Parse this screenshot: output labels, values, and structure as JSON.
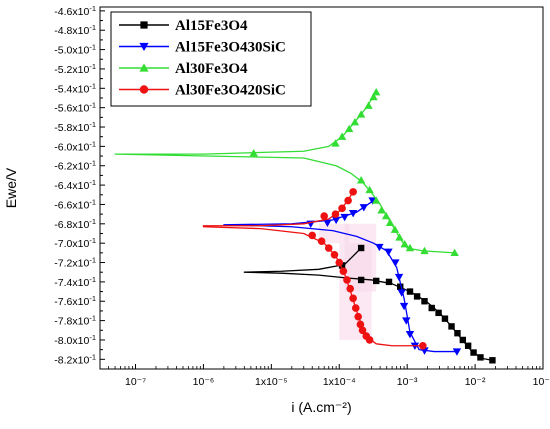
{
  "chart_data": {
    "type": "line",
    "xlabel": "i (A.cm⁻²)",
    "ylabel": "Ewe/V",
    "x_scale": "log",
    "xlim": [
      3e-08,
      0.1
    ],
    "ylim": [
      -0.83,
      -0.456
    ],
    "x_ticks": [
      {
        "value": 1e-07,
        "label": "10⁻⁷"
      },
      {
        "value": 1e-06,
        "label": "10⁻⁶"
      },
      {
        "value": 1e-05,
        "label": "1x10⁻⁵"
      },
      {
        "value": 0.0001,
        "label": "1x10⁻⁴"
      },
      {
        "value": 0.001,
        "label": "10⁻³"
      },
      {
        "value": 0.01,
        "label": "10⁻²"
      },
      {
        "value": 0.1,
        "label": "10⁻¹"
      }
    ],
    "y_ticks": [
      {
        "value": -0.46,
        "mant": "-4.6x10",
        "exp": "-1"
      },
      {
        "value": -0.48,
        "mant": "-4.8x10",
        "exp": "-1"
      },
      {
        "value": -0.5,
        "mant": "-5.0x10",
        "exp": "-1"
      },
      {
        "value": -0.52,
        "mant": "-5.2x10",
        "exp": "-1"
      },
      {
        "value": -0.54,
        "mant": "-5.4x10",
        "exp": "-1"
      },
      {
        "value": -0.56,
        "mant": "-5.6x10",
        "exp": "-1"
      },
      {
        "value": -0.58,
        "mant": "-5.8x10",
        "exp": "-1"
      },
      {
        "value": -0.6,
        "mant": "-6.0x10",
        "exp": "-1"
      },
      {
        "value": -0.62,
        "mant": "-6.2x10",
        "exp": "-1"
      },
      {
        "value": -0.64,
        "mant": "-6.4x10",
        "exp": "-1"
      },
      {
        "value": -0.66,
        "mant": "-6.6x10",
        "exp": "-1"
      },
      {
        "value": -0.68,
        "mant": "-6.8x10",
        "exp": "-1"
      },
      {
        "value": -0.7,
        "mant": "-7.0x10",
        "exp": "-1"
      },
      {
        "value": -0.72,
        "mant": "-7.2x10",
        "exp": "-1"
      },
      {
        "value": -0.74,
        "mant": "-7.4x10",
        "exp": "-1"
      },
      {
        "value": -0.76,
        "mant": "-7.6x10",
        "exp": "-1"
      },
      {
        "value": -0.78,
        "mant": "-7.8x10",
        "exp": "-1"
      },
      {
        "value": -0.8,
        "mant": "-8.0x10",
        "exp": "-1"
      },
      {
        "value": -0.82,
        "mant": "-8.2x10",
        "exp": "-1"
      }
    ],
    "legend": {
      "placement": "top-left"
    },
    "series": [
      {
        "name": "Al15Fe3O4",
        "color": "#000000",
        "marker": "square",
        "points": [
          [
            0.00021,
            -0.705
          ],
          [
            0.00012,
            -0.722
          ],
          [
            5e-05,
            -0.727
          ],
          [
            1.4e-05,
            -0.729
          ],
          [
            4e-06,
            -0.73
          ],
          [
            1.4e-05,
            -0.731
          ],
          [
            5e-05,
            -0.733
          ],
          [
            0.00013,
            -0.736
          ],
          [
            0.0003,
            -0.738
          ],
          [
            0.0006,
            -0.742
          ],
          [
            0.0011,
            -0.75
          ],
          [
            0.0019,
            -0.76
          ],
          [
            0.003,
            -0.772
          ],
          [
            0.0045,
            -0.786
          ],
          [
            0.0065,
            -0.8
          ],
          [
            0.009,
            -0.812
          ],
          [
            0.0125,
            -0.819
          ],
          [
            0.018,
            -0.821
          ]
        ],
        "markers": [
          [
            0.00021,
            -0.705
          ],
          [
            0.00011,
            -0.723
          ],
          [
            0.00021,
            -0.738
          ],
          [
            0.00035,
            -0.739
          ],
          [
            0.00054,
            -0.74
          ],
          [
            0.00079,
            -0.745
          ],
          [
            0.0011,
            -0.75
          ],
          [
            0.0014,
            -0.755
          ],
          [
            0.0018,
            -0.76
          ],
          [
            0.0023,
            -0.767
          ],
          [
            0.0029,
            -0.772
          ],
          [
            0.0036,
            -0.778
          ],
          [
            0.0045,
            -0.786
          ],
          [
            0.0055,
            -0.793
          ],
          [
            0.0066,
            -0.8
          ],
          [
            0.0079,
            -0.806
          ],
          [
            0.0095,
            -0.813
          ],
          [
            0.012,
            -0.818
          ],
          [
            0.018,
            -0.821
          ]
        ]
      },
      {
        "name": "Al15Fe3O430SiC",
        "color": "#0000ff",
        "marker": "triangle-down",
        "points": [
          [
            0.00032,
            -0.656
          ],
          [
            0.00018,
            -0.668
          ],
          [
            8e-05,
            -0.676
          ],
          [
            2e-05,
            -0.68
          ],
          [
            2e-06,
            -0.681
          ],
          [
            2e-05,
            -0.683
          ],
          [
            8e-05,
            -0.687
          ],
          [
            0.00018,
            -0.693
          ],
          [
            0.00032,
            -0.7
          ],
          [
            0.0005,
            -0.708
          ],
          [
            0.0007,
            -0.725
          ],
          [
            0.0009,
            -0.757
          ],
          [
            0.0011,
            -0.792
          ],
          [
            0.0015,
            -0.81
          ],
          [
            0.0025,
            -0.812
          ],
          [
            0.0055,
            -0.812
          ]
        ],
        "markers": [
          [
            0.00031,
            -0.656
          ],
          [
            0.00023,
            -0.663
          ],
          [
            0.00016,
            -0.669
          ],
          [
            0.00012,
            -0.673
          ],
          [
            9e-05,
            -0.676
          ],
          [
            6.7e-05,
            -0.679
          ],
          [
            3.8e-05,
            -0.68
          ],
          [
            0.00039,
            -0.704
          ],
          [
            0.00053,
            -0.709
          ],
          [
            0.00067,
            -0.72
          ],
          [
            0.00076,
            -0.735
          ],
          [
            0.00083,
            -0.751
          ],
          [
            0.0009,
            -0.765
          ],
          [
            0.00097,
            -0.78
          ],
          [
            0.0011,
            -0.794
          ],
          [
            0.0013,
            -0.806
          ],
          [
            0.0018,
            -0.811
          ],
          [
            0.0054,
            -0.812
          ]
        ]
      },
      {
        "name": "Al30Fe3O4",
        "color": "#33dd33",
        "marker": "triangle-up",
        "points": [
          [
            0.00035,
            -0.544
          ],
          [
            0.00025,
            -0.56
          ],
          [
            0.00016,
            -0.577
          ],
          [
            0.00011,
            -0.59
          ],
          [
            7e-05,
            -0.6
          ],
          [
            3e-05,
            -0.605
          ],
          [
            1e-06,
            -0.608
          ],
          [
            5e-08,
            -0.608
          ],
          [
            3e-05,
            -0.612
          ],
          [
            9e-05,
            -0.62
          ],
          [
            0.00015,
            -0.628
          ],
          [
            0.00022,
            -0.637
          ],
          [
            0.0003,
            -0.648
          ],
          [
            0.0004,
            -0.66
          ],
          [
            0.0005,
            -0.672
          ],
          [
            0.00065,
            -0.685
          ],
          [
            0.0008,
            -0.696
          ],
          [
            0.001,
            -0.705
          ],
          [
            0.0017,
            -0.708
          ],
          [
            0.003,
            -0.709
          ],
          [
            0.005,
            -0.71
          ]
        ],
        "markers": [
          [
            0.00035,
            -0.544
          ],
          [
            0.00032,
            -0.549
          ],
          [
            0.00027,
            -0.558
          ],
          [
            0.00021,
            -0.567
          ],
          [
            0.00017,
            -0.575
          ],
          [
            0.00014,
            -0.582
          ],
          [
            0.00011,
            -0.59
          ],
          [
            8.8e-05,
            -0.597
          ],
          [
            5.5e-06,
            -0.607
          ],
          [
            0.00021,
            -0.635
          ],
          [
            0.00028,
            -0.645
          ],
          [
            0.00035,
            -0.656
          ],
          [
            0.00042,
            -0.666
          ],
          [
            0.00049,
            -0.672
          ],
          [
            0.00056,
            -0.679
          ],
          [
            0.00066,
            -0.686
          ],
          [
            0.00077,
            -0.694
          ],
          [
            0.00092,
            -0.701
          ],
          [
            0.0011,
            -0.705
          ],
          [
            0.0018,
            -0.708
          ],
          [
            0.005,
            -0.71
          ]
        ]
      },
      {
        "name": "Al30Fe3O420SiC",
        "color": "#ee1111",
        "marker": "circle",
        "points": [
          [
            0.00016,
            -0.647
          ],
          [
            0.00013,
            -0.657
          ],
          [
            0.0001,
            -0.667
          ],
          [
            7e-05,
            -0.675
          ],
          [
            3e-05,
            -0.68
          ],
          [
            7e-06,
            -0.682
          ],
          [
            1e-06,
            -0.682
          ],
          [
            1e-06,
            -0.683
          ],
          [
            7e-06,
            -0.685
          ],
          [
            3e-05,
            -0.69
          ],
          [
            6e-05,
            -0.7
          ],
          [
            9e-05,
            -0.714
          ],
          [
            0.00012,
            -0.732
          ],
          [
            0.00015,
            -0.752
          ],
          [
            0.00018,
            -0.77
          ],
          [
            0.00022,
            -0.787
          ],
          [
            0.00027,
            -0.798
          ],
          [
            0.00035,
            -0.804
          ],
          [
            0.0006,
            -0.806
          ],
          [
            0.0017,
            -0.806
          ]
        ],
        "markers": [
          [
            0.00016,
            -0.647
          ],
          [
            0.000135,
            -0.656
          ],
          [
            0.00011,
            -0.664
          ],
          [
            8.8e-05,
            -0.67
          ],
          [
            6e-05,
            -0.672
          ],
          [
            4e-05,
            -0.692
          ],
          [
            5.5e-05,
            -0.698
          ],
          [
            7e-05,
            -0.705
          ],
          [
            8.5e-05,
            -0.712
          ],
          [
            0.0001,
            -0.72
          ],
          [
            0.000115,
            -0.729
          ],
          [
            0.00013,
            -0.738
          ],
          [
            0.000145,
            -0.747
          ],
          [
            0.00016,
            -0.757
          ],
          [
            0.000175,
            -0.767
          ],
          [
            0.00019,
            -0.776
          ],
          [
            0.000205,
            -0.784
          ],
          [
            0.00022,
            -0.79
          ],
          [
            0.00025,
            -0.796
          ],
          [
            0.00028,
            -0.8
          ],
          [
            0.0017,
            -0.806
          ]
        ]
      }
    ]
  }
}
